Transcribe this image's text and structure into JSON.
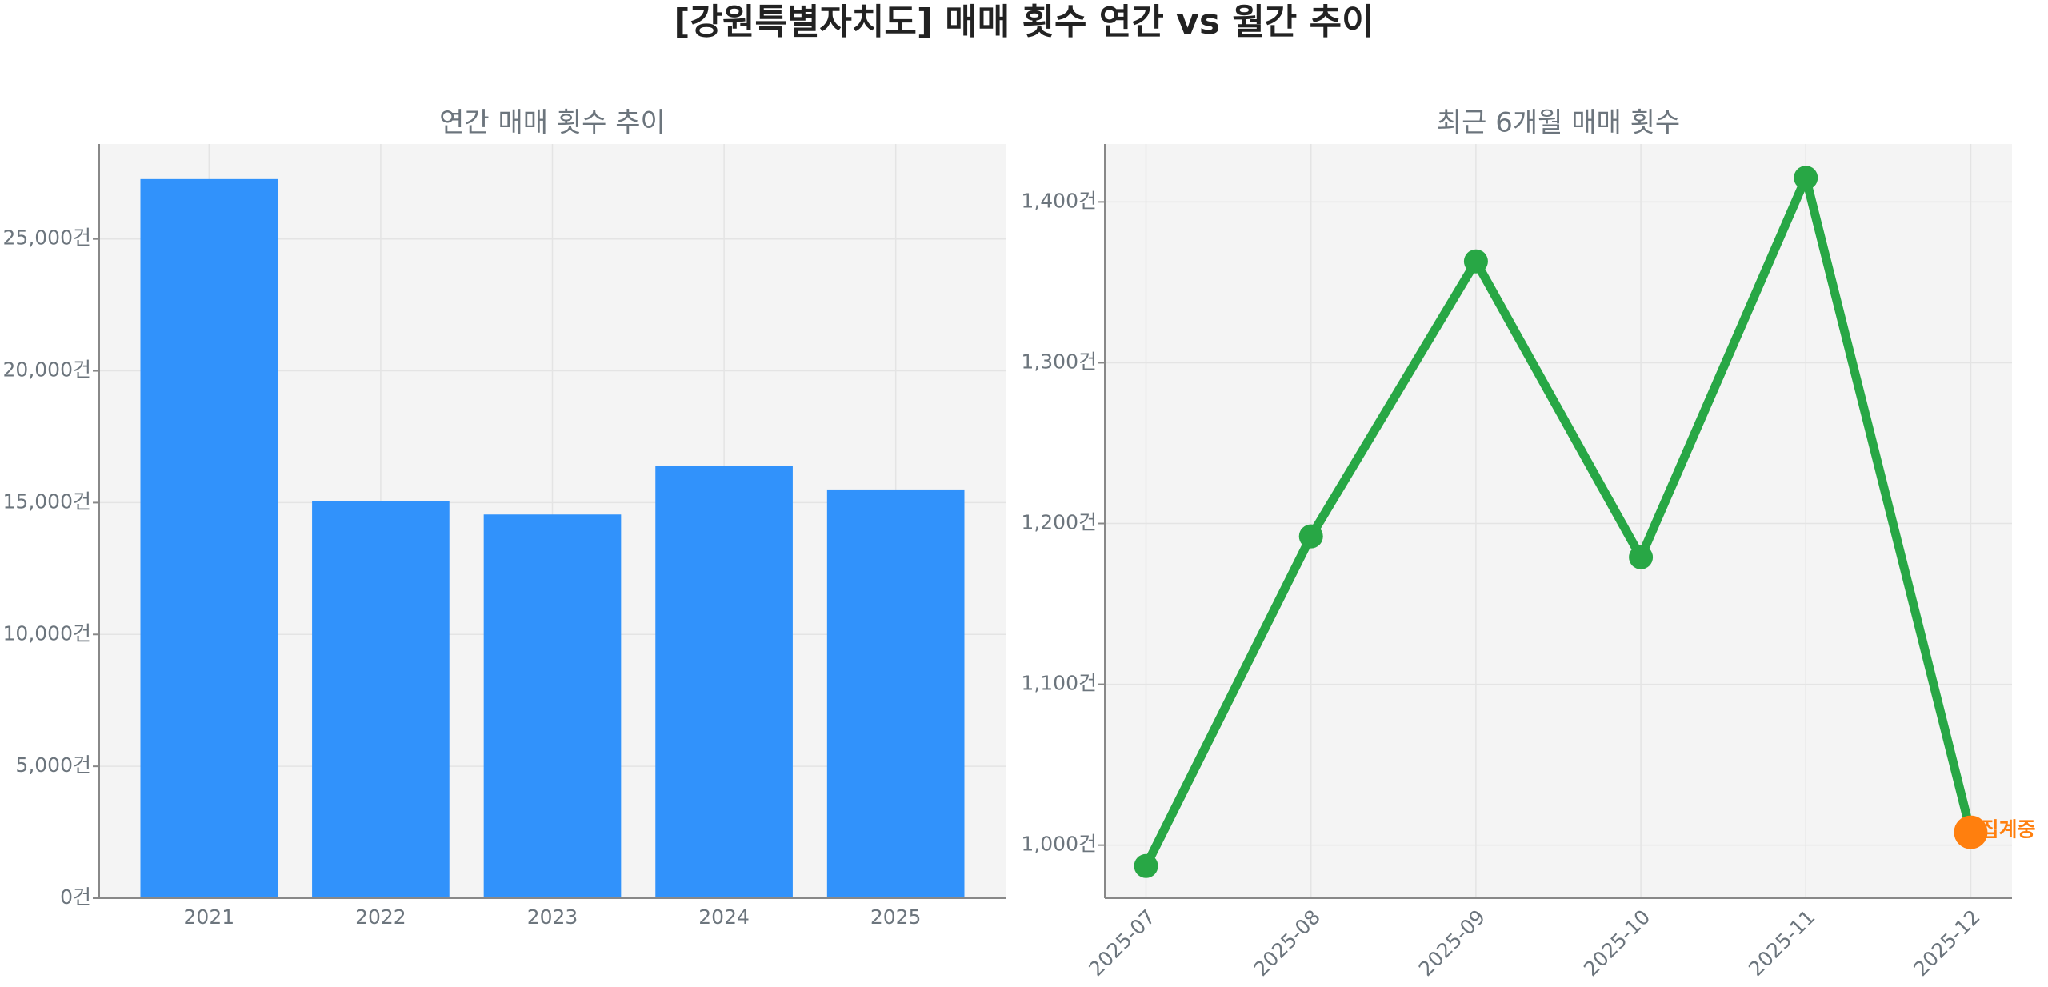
{
  "title": "[강원특별자치도] 매매 횟수 연간 vs 월간 추이",
  "chart_data": [
    {
      "type": "bar",
      "title": "연간 매매 횟수 추이",
      "categories": [
        "2021",
        "2022",
        "2023",
        "2024",
        "2025"
      ],
      "values": [
        27270,
        15050,
        14550,
        16390,
        15500
      ],
      "color": "#3192fb",
      "ylim": [
        0,
        28600
      ],
      "yticks": [
        {
          "value": 0,
          "label": "0건"
        },
        {
          "value": 5000,
          "label": "5,000건"
        },
        {
          "value": 10000,
          "label": "10,000건"
        },
        {
          "value": 15000,
          "label": "15,000건"
        },
        {
          "value": 20000,
          "label": "20,000건"
        },
        {
          "value": 25000,
          "label": "25,000건"
        }
      ],
      "grid": true
    },
    {
      "type": "line",
      "title": "최근 6개월 매매 횟수",
      "x": [
        "2025-07",
        "2025-08",
        "2025-09",
        "2025-10",
        "2025-11",
        "2025-12"
      ],
      "values": [
        987,
        1192,
        1363,
        1179,
        1415,
        1008
      ],
      "color": "#28a745",
      "ylim": [
        967,
        1436
      ],
      "yticks": [
        {
          "value": 1000,
          "label": "1,000건"
        },
        {
          "value": 1100,
          "label": "1,100건"
        },
        {
          "value": 1200,
          "label": "1,200건"
        },
        {
          "value": 1300,
          "label": "1,300건"
        },
        {
          "value": 1400,
          "label": "1,400건"
        }
      ],
      "grid": true,
      "annotations": [
        {
          "x": "2025-12",
          "y": 1008,
          "text": "집계중",
          "color": "#ff7f0e"
        }
      ]
    }
  ]
}
